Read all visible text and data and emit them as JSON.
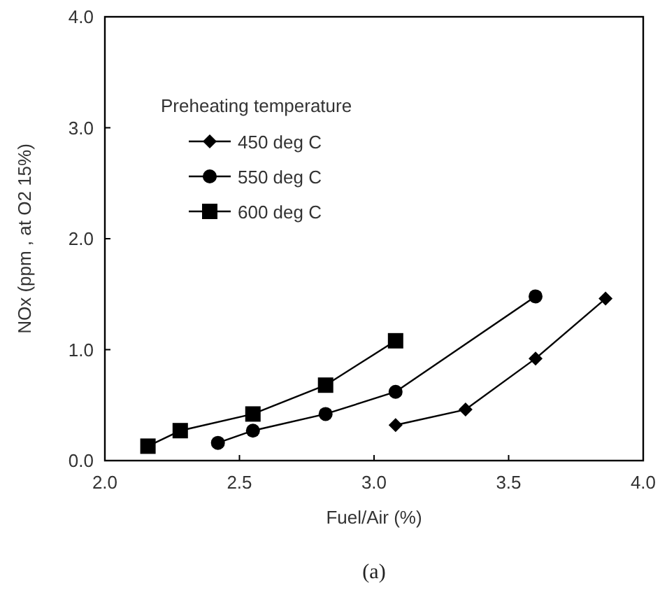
{
  "chart_data": {
    "type": "line",
    "xlabel": "Fuel/Air (%)",
    "ylabel": "NOx (ppm , at O2 15%)",
    "legend_title": "Preheating temperature",
    "legend": "top left",
    "annotations": [
      "(a)"
    ],
    "xlim": [
      2.0,
      4.0
    ],
    "ylim": [
      0.0,
      4.0
    ],
    "xticks": [
      {
        "value": 2,
        "label": "2.0"
      },
      {
        "value": 2.5,
        "label": "2.5"
      },
      {
        "value": 3,
        "label": "3.0"
      },
      {
        "value": 3.5,
        "label": "3.5"
      },
      {
        "value": 4,
        "label": "4.0"
      }
    ],
    "yticks": [
      {
        "value": 0,
        "label": "0.0"
      },
      {
        "value": 1,
        "label": "1.0"
      },
      {
        "value": 2,
        "label": "2.0"
      },
      {
        "value": 3,
        "label": "3.0"
      },
      {
        "value": 4,
        "label": "4.0"
      }
    ],
    "series": [
      {
        "name": "450 deg C",
        "color": "#000000",
        "marker": "diamond",
        "x": [
          3.08,
          3.34,
          3.6,
          3.86
        ],
        "values": [
          0.32,
          0.46,
          0.92,
          1.46
        ]
      },
      {
        "name": "550 deg C",
        "color": "#000000",
        "marker": "circle",
        "x": [
          2.42,
          2.55,
          2.82,
          3.08,
          3.6
        ],
        "values": [
          0.16,
          0.27,
          0.42,
          0.62,
          1.48
        ]
      },
      {
        "name": "600 deg C",
        "color": "#000000",
        "marker": "square",
        "x": [
          2.16,
          2.28,
          2.55,
          2.82,
          3.08
        ],
        "values": [
          0.13,
          0.27,
          0.42,
          0.68,
          1.08
        ]
      }
    ]
  }
}
